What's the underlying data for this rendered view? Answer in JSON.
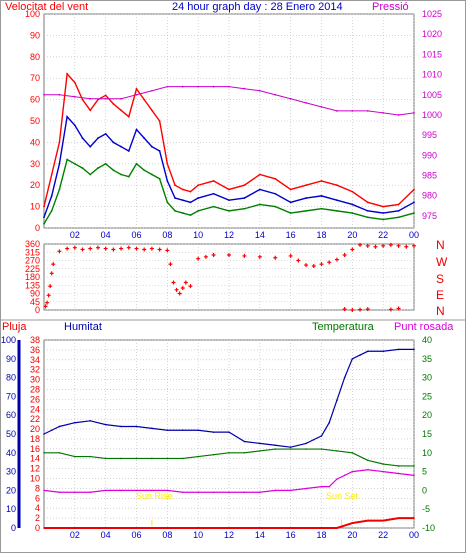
{
  "colors": {
    "wind": "#ff0000",
    "gust_line": "#ff0000",
    "avg_line": "#0000cc",
    "speed_line": "#008000",
    "pressure": "#cc00cc",
    "humidity": "#0000aa",
    "temperature": "#007700",
    "dewpoint": "#dd00dd",
    "rain": "#ee0000",
    "sun": "#ffee00",
    "grid": "#bbbbbb",
    "frame": "#777777"
  },
  "top": {
    "left_title": "Velocitat del vent",
    "center_title": "24 hour graph day : 28 Enero 2014",
    "right_title": "Pressió"
  },
  "middle": {
    "compass": [
      "N",
      "W",
      "S",
      "E",
      "N"
    ]
  },
  "bottom": {
    "labels": [
      "Pluja",
      "Humitat",
      "Temperatura",
      "Punt rosada"
    ],
    "sunrise": "Sun Rise",
    "sunset": "Sun Set"
  },
  "chart_data": [
    {
      "type": "line",
      "title": "24 hour graph day : 28 Enero 2014",
      "ylabel": "Velocitat del vent",
      "y2label": "Pressió",
      "x_ticks": [
        "02",
        "04",
        "06",
        "08",
        "10",
        "12",
        "14",
        "16",
        "18",
        "20",
        "22",
        "00"
      ],
      "ylim": [
        0,
        100
      ],
      "y_ticks": [
        0,
        10,
        20,
        30,
        40,
        50,
        60,
        70,
        80,
        90,
        100
      ],
      "y2lim": [
        972,
        1025
      ],
      "y2_ticks": [
        975,
        980,
        985,
        990,
        995,
        1000,
        1005,
        1010,
        1015,
        1020,
        1025
      ],
      "grid": true,
      "series": [
        {
          "name": "",
          "role": "gust",
          "color": "#ff0000",
          "x": [
            0,
            0.5,
            1.0,
            1.5,
            2.0,
            2.5,
            3.0,
            3.5,
            4.0,
            4.5,
            5.0,
            5.5,
            6.0,
            6.5,
            7.0,
            7.5,
            8.0,
            8.5,
            9.0,
            9.5,
            10,
            11,
            12,
            13,
            14,
            15,
            16,
            17,
            18,
            19,
            20,
            21,
            22,
            23,
            24
          ],
          "values": [
            10,
            25,
            40,
            72,
            68,
            60,
            55,
            60,
            62,
            58,
            55,
            52,
            65,
            60,
            55,
            50,
            30,
            20,
            18,
            17,
            20,
            22,
            18,
            20,
            25,
            23,
            18,
            20,
            22,
            20,
            17,
            12,
            10,
            11,
            18
          ]
        },
        {
          "name": "",
          "role": "average",
          "color": "#0000cc",
          "x": [
            0,
            0.5,
            1.0,
            1.5,
            2.0,
            2.5,
            3.0,
            3.5,
            4.0,
            4.5,
            5.0,
            5.5,
            6.0,
            6.5,
            7.0,
            7.5,
            8.0,
            8.5,
            9.0,
            9.5,
            10,
            11,
            12,
            13,
            14,
            15,
            16,
            17,
            18,
            19,
            20,
            21,
            22,
            23,
            24
          ],
          "values": [
            5,
            15,
            30,
            52,
            48,
            42,
            38,
            42,
            44,
            40,
            38,
            36,
            46,
            42,
            38,
            36,
            22,
            14,
            13,
            12,
            14,
            16,
            13,
            14,
            18,
            16,
            12,
            14,
            15,
            13,
            11,
            8,
            7,
            8,
            12
          ]
        },
        {
          "name": "",
          "role": "speed",
          "color": "#008000",
          "x": [
            0,
            0.5,
            1.0,
            1.5,
            2.0,
            2.5,
            3.0,
            3.5,
            4.0,
            4.5,
            5.0,
            5.5,
            6.0,
            6.5,
            7.0,
            7.5,
            8.0,
            8.5,
            9.0,
            9.5,
            10,
            11,
            12,
            13,
            14,
            15,
            16,
            17,
            18,
            19,
            20,
            21,
            22,
            23,
            24
          ],
          "values": [
            2,
            8,
            18,
            32,
            30,
            28,
            25,
            28,
            30,
            27,
            25,
            24,
            30,
            27,
            25,
            23,
            12,
            8,
            7,
            6,
            8,
            10,
            8,
            9,
            11,
            10,
            7,
            8,
            9,
            8,
            7,
            5,
            4,
            5,
            7
          ]
        },
        {
          "name": "Pressió",
          "axis": "right",
          "color": "#cc00cc",
          "x": [
            0,
            1,
            2,
            3,
            4,
            5,
            6,
            7,
            8,
            9,
            10,
            11,
            12,
            13,
            14,
            15,
            16,
            17,
            18,
            19,
            20,
            21,
            22,
            23,
            24
          ],
          "values": [
            1005,
            1005,
            1004.5,
            1004,
            1004,
            1004,
            1005,
            1006,
            1007,
            1007,
            1007,
            1007,
            1007,
            1006.5,
            1006,
            1005,
            1004,
            1003,
            1002,
            1001,
            1001,
            1001,
            1000.5,
            1000,
            1000.5
          ]
        }
      ]
    },
    {
      "type": "scatter",
      "ylabel": "Wind direction",
      "ylim": [
        0,
        360
      ],
      "y_ticks": [
        0,
        45,
        90,
        135,
        180,
        225,
        270,
        315,
        360
      ],
      "x_ticks": [
        "02",
        "04",
        "06",
        "08",
        "10",
        "12",
        "14",
        "16",
        "18",
        "20",
        "22",
        "00"
      ],
      "grid": true,
      "series": [
        {
          "name": "",
          "color": "#ff0000",
          "x": [
            0.1,
            0.2,
            0.3,
            0.4,
            0.5,
            0.6,
            1.0,
            1.5,
            2.0,
            2.5,
            3.0,
            3.5,
            4.0,
            4.5,
            5.0,
            5.5,
            6.0,
            6.5,
            7.0,
            7.5,
            8.0,
            8.2,
            8.4,
            8.6,
            8.8,
            9.0,
            9.2,
            9.5,
            10.0,
            10.5,
            11.0,
            12.0,
            13.0,
            14.0,
            15.0,
            16.0,
            16.5,
            17.0,
            17.5,
            18.0,
            18.5,
            19.0,
            19.5,
            20.0,
            20.5,
            21.0,
            21.5,
            22.0,
            22.5,
            23.0,
            23.5,
            24.0
          ],
          "values": [
            20,
            40,
            80,
            130,
            200,
            250,
            320,
            335,
            340,
            330,
            335,
            340,
            335,
            330,
            335,
            340,
            335,
            330,
            335,
            330,
            325,
            250,
            150,
            110,
            90,
            120,
            150,
            130,
            280,
            290,
            300,
            300,
            295,
            290,
            285,
            295,
            270,
            245,
            240,
            250,
            260,
            275,
            300,
            330,
            355,
            350,
            345,
            350,
            355,
            350,
            345,
            350
          ]
        },
        {
          "name": "",
          "color": "#ff0000",
          "x": [
            19.5,
            20.0,
            20.5,
            21.0,
            22.5,
            23.0
          ],
          "values": [
            5,
            0,
            2,
            5,
            3,
            8
          ]
        }
      ]
    },
    {
      "type": "line",
      "ylabel": "Humitat",
      "y2label": "Temperatura",
      "x_ticks": [
        "02",
        "04",
        "06",
        "08",
        "10",
        "12",
        "14",
        "16",
        "18",
        "20",
        "22",
        "00"
      ],
      "humidity_ticks": [
        0,
        10,
        20,
        30,
        40,
        50,
        60,
        70,
        80,
        90,
        100
      ],
      "humidity_lim": [
        0,
        100
      ],
      "rain_ticks": [
        0,
        2,
        4,
        6,
        8,
        10,
        12,
        14,
        16,
        18,
        20,
        22,
        24,
        26,
        28,
        30,
        32,
        34,
        36,
        38
      ],
      "rain_lim": [
        0,
        38
      ],
      "temp_ticks": [
        -10,
        -5,
        0,
        5,
        10,
        15,
        20,
        25,
        30,
        35,
        40
      ],
      "temp_lim": [
        -10,
        40
      ],
      "grid": true,
      "series": [
        {
          "name": "Humitat",
          "axis": "humidity",
          "color": "#0000aa",
          "x": [
            0,
            0.5,
            1.0,
            2.0,
            3.0,
            4.0,
            5.0,
            6.0,
            7.0,
            8.0,
            9.0,
            10,
            11,
            12,
            13,
            14,
            15,
            16,
            17,
            17.5,
            18,
            18.5,
            19,
            19.5,
            20,
            20.5,
            21,
            22,
            23,
            24
          ],
          "values": [
            50,
            52,
            54,
            56,
            57,
            55,
            54,
            54,
            53,
            52,
            52,
            52,
            51,
            51,
            46,
            45,
            44,
            43,
            45,
            47,
            49,
            56,
            68,
            80,
            90,
            92,
            94,
            94,
            95,
            95
          ]
        },
        {
          "name": "Temperatura",
          "axis": "temperature",
          "color": "#007700",
          "x": [
            0,
            1,
            2,
            3,
            4,
            5,
            6,
            7,
            8,
            9,
            10,
            11,
            12,
            13,
            14,
            15,
            16,
            17,
            18,
            19,
            20,
            21,
            22,
            23,
            24
          ],
          "values": [
            10,
            10,
            9,
            9,
            8.5,
            8.5,
            8.5,
            8.5,
            8.5,
            8.5,
            9,
            9.5,
            10,
            10,
            10.5,
            11,
            11,
            11,
            11,
            10.5,
            10,
            8,
            7,
            6.5,
            6.5
          ]
        },
        {
          "name": "Punt rosada",
          "axis": "temperature",
          "color": "#dd00dd",
          "x": [
            0,
            1,
            2,
            3,
            4,
            5,
            6,
            7,
            8,
            9,
            10,
            11,
            12,
            13,
            14,
            15,
            16,
            17,
            18,
            18.5,
            19,
            19.5,
            20,
            21,
            22,
            23,
            24
          ],
          "values": [
            0,
            -0.5,
            -0.5,
            -0.5,
            0,
            0,
            0,
            0,
            0,
            -0.5,
            -0.5,
            -0.5,
            -0.5,
            -0.5,
            -0.5,
            0,
            0,
            0.5,
            1,
            1,
            3,
            4,
            5,
            5.5,
            5,
            4.5,
            4
          ]
        },
        {
          "name": "Pluja",
          "axis": "rain",
          "color": "#ee0000",
          "x": [
            0,
            19,
            19.5,
            20,
            21,
            22,
            23,
            24
          ],
          "values": [
            0,
            0,
            0.5,
            1.0,
            1.5,
            1.5,
            2.0,
            2.0
          ]
        }
      ],
      "annotations": [
        {
          "text": "Sun Rise",
          "x": 7.0
        },
        {
          "text": "Sun Set",
          "x": 19.3
        }
      ]
    }
  ]
}
